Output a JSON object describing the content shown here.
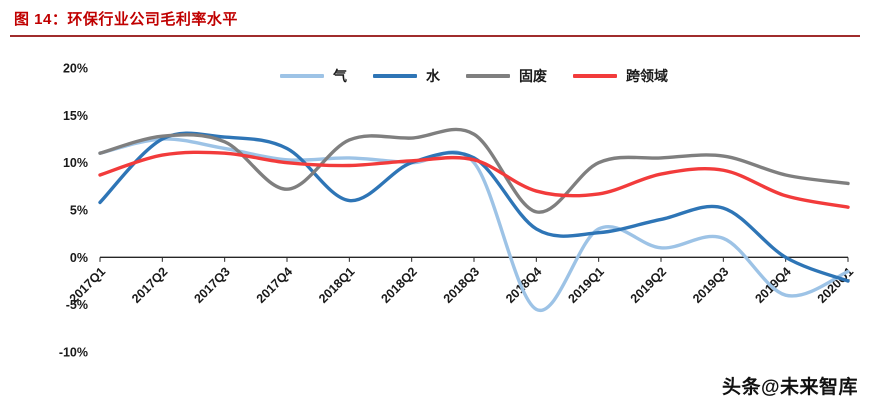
{
  "page": {
    "title": "图 14：环保行业公司毛利率水平",
    "title_color": "#C00000",
    "rule_color": "#A02C2C",
    "watermark": "头条@未来智库"
  },
  "chart_data": {
    "type": "line",
    "title": "图 14：环保行业公司毛利率水平",
    "xlabel": "",
    "ylabel": "",
    "x": [
      "2017Q1",
      "2017Q2",
      "2017Q3",
      "2017Q4",
      "2018Q1",
      "2018Q2",
      "2018Q3",
      "2018Q4",
      "2019Q1",
      "2019Q2",
      "2019Q3",
      "2019Q4",
      "2020Q1"
    ],
    "ylim": [
      -10,
      20
    ],
    "yticks": [
      20,
      15,
      10,
      5,
      0,
      -5,
      -10
    ],
    "ytick_suffix": "%",
    "grid": false,
    "smooth": true,
    "legend_position": "top",
    "axis_color": "#262626",
    "series": [
      {
        "name": "气",
        "color": "#9DC3E6",
        "values": [
          11.0,
          12.5,
          11.5,
          10.3,
          10.5,
          10.0,
          10.0,
          -5.5,
          3.0,
          1.0,
          2.0,
          -4.0,
          -1.5
        ]
      },
      {
        "name": "水",
        "color": "#2E75B6",
        "values": [
          5.8,
          12.5,
          12.7,
          11.5,
          6.0,
          10.0,
          10.5,
          3.0,
          2.6,
          4.0,
          5.2,
          0.0,
          -2.5
        ]
      },
      {
        "name": "固废",
        "color": "#7F7F7F",
        "values": [
          11.0,
          12.8,
          12.2,
          7.2,
          12.4,
          12.6,
          13.0,
          4.8,
          10.0,
          10.5,
          10.7,
          8.7,
          7.8
        ]
      },
      {
        "name": "跨领域",
        "color": "#F23B3B",
        "values": [
          8.7,
          10.8,
          11.0,
          10.0,
          9.7,
          10.2,
          10.3,
          7.0,
          6.7,
          8.8,
          9.2,
          6.5,
          5.3
        ]
      }
    ]
  }
}
